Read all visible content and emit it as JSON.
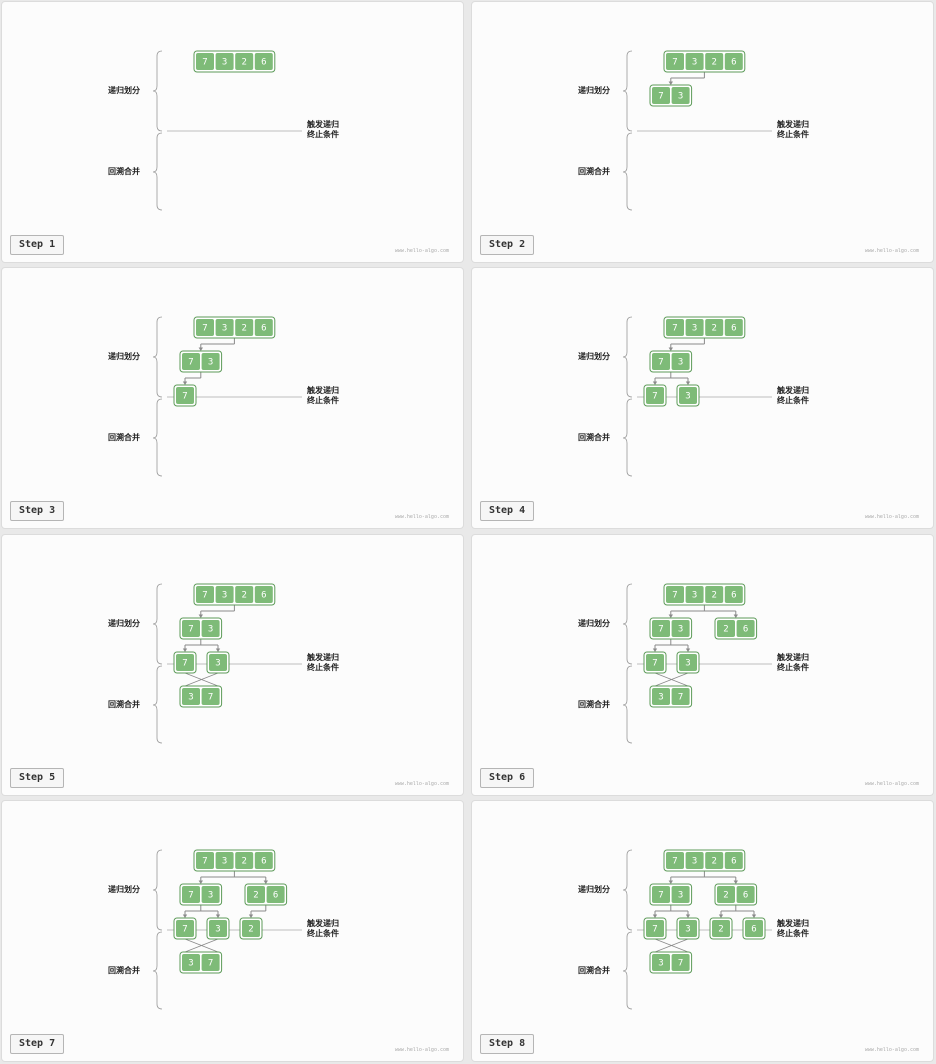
{
  "labels": {
    "divide": "递归划分",
    "merge": "回溯合并",
    "condition_line1": "触发递归",
    "condition_line2": "终止条件",
    "watermark": "www.hello-algo.com"
  },
  "colors": {
    "cell_fill": "#7ebb78",
    "cell_border": "#5c9a58",
    "cell_text": "#ffffff",
    "line": "#8a8a8a"
  },
  "steps": [
    {
      "label": "Step 1",
      "nodes": [
        {
          "id": "root",
          "values": [
            7,
            3,
            2,
            6
          ]
        }
      ]
    },
    {
      "label": "Step 2",
      "nodes": [
        {
          "id": "root",
          "values": [
            7,
            3,
            2,
            6
          ]
        },
        {
          "id": "L",
          "values": [
            7,
            3
          ]
        }
      ]
    },
    {
      "label": "Step 3",
      "nodes": [
        {
          "id": "root",
          "values": [
            7,
            3,
            2,
            6
          ]
        },
        {
          "id": "L",
          "values": [
            7,
            3
          ]
        },
        {
          "id": "LL",
          "values": [
            7
          ]
        }
      ]
    },
    {
      "label": "Step 4",
      "nodes": [
        {
          "id": "root",
          "values": [
            7,
            3,
            2,
            6
          ]
        },
        {
          "id": "L",
          "values": [
            7,
            3
          ]
        },
        {
          "id": "LL",
          "values": [
            7
          ]
        },
        {
          "id": "LR",
          "values": [
            3
          ]
        }
      ]
    },
    {
      "label": "Step 5",
      "nodes": [
        {
          "id": "root",
          "values": [
            7,
            3,
            2,
            6
          ]
        },
        {
          "id": "L",
          "values": [
            7,
            3
          ]
        },
        {
          "id": "LL",
          "values": [
            7
          ]
        },
        {
          "id": "LR",
          "values": [
            3
          ]
        },
        {
          "id": "ML",
          "values": [
            3,
            7
          ]
        }
      ]
    },
    {
      "label": "Step 6",
      "nodes": [
        {
          "id": "root",
          "values": [
            7,
            3,
            2,
            6
          ]
        },
        {
          "id": "L",
          "values": [
            7,
            3
          ]
        },
        {
          "id": "R",
          "values": [
            2,
            6
          ]
        },
        {
          "id": "LL",
          "values": [
            7
          ]
        },
        {
          "id": "LR",
          "values": [
            3
          ]
        },
        {
          "id": "ML",
          "values": [
            3,
            7
          ]
        }
      ]
    },
    {
      "label": "Step 7",
      "nodes": [
        {
          "id": "root",
          "values": [
            7,
            3,
            2,
            6
          ]
        },
        {
          "id": "L",
          "values": [
            7,
            3
          ]
        },
        {
          "id": "R",
          "values": [
            2,
            6
          ]
        },
        {
          "id": "LL",
          "values": [
            7
          ]
        },
        {
          "id": "LR",
          "values": [
            3
          ]
        },
        {
          "id": "RL",
          "values": [
            2
          ]
        },
        {
          "id": "ML",
          "values": [
            3,
            7
          ]
        }
      ]
    },
    {
      "label": "Step 8",
      "nodes": [
        {
          "id": "root",
          "values": [
            7,
            3,
            2,
            6
          ]
        },
        {
          "id": "L",
          "values": [
            7,
            3
          ]
        },
        {
          "id": "R",
          "values": [
            2,
            6
          ]
        },
        {
          "id": "LL",
          "values": [
            7
          ]
        },
        {
          "id": "LR",
          "values": [
            3
          ]
        },
        {
          "id": "RL",
          "values": [
            2
          ]
        },
        {
          "id": "RR",
          "values": [
            6
          ]
        },
        {
          "id": "ML",
          "values": [
            3,
            7
          ]
        }
      ]
    }
  ]
}
